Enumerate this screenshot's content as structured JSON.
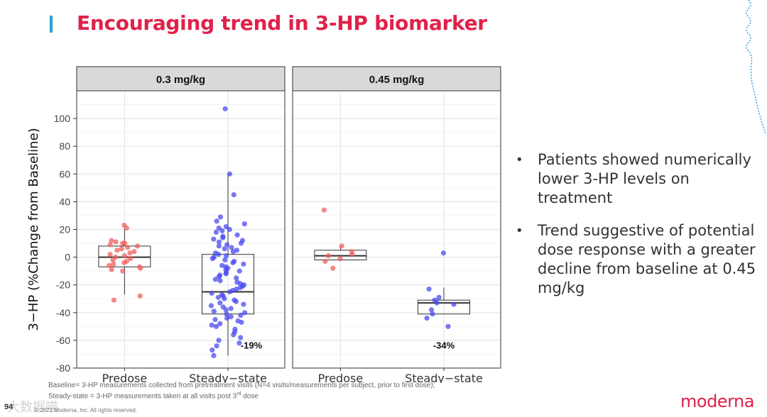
{
  "slide": {
    "title": "Encouraging trend in 3-HP biomarker",
    "page_number": "94",
    "copyright": "© 2022 Moderna, Inc. All rights reserved.",
    "brand": "moderna",
    "watermark": "大数据喵",
    "accent_color": "#e0214a",
    "bar_color": "#2a9fd8"
  },
  "bullets": [
    "Patients showed numerically lower 3-HP levels on treatment",
    "Trend suggestive of potential dose response with a greater decline from baseline at 0.45 mg/kg"
  ],
  "footnotes": {
    "line1": "Baseline= 3-HP measurements collected from pretreatment visits (N=4 visits/measurements per subject, prior to first dose);",
    "line2_prefix": "Steady-state = 3-HP measurements taken at all visits post 3",
    "line2_sup": "rd",
    "line2_suffix": " dose"
  },
  "chart_data": {
    "type": "box+jitter",
    "ylabel": "3−HP (%Change from Baseline)",
    "ylim": [
      -80,
      120
    ],
    "yticks": [
      -80,
      -60,
      -40,
      -20,
      0,
      20,
      40,
      60,
      80,
      100
    ],
    "categories": [
      "Predose",
      "Steady−state"
    ],
    "grid": true,
    "colors": {
      "Predose": "#f06060",
      "Steady−state": "#4a4af0"
    },
    "panels": [
      {
        "label": "0.3 mg/kg",
        "groups": [
          {
            "category": "Predose",
            "box": {
              "min": -27,
              "q1": -7,
              "median": 0,
              "q3": 8,
              "max": 22
            },
            "points": [
              23,
              21,
              12,
              11,
              10,
              10,
              9,
              8,
              7,
              6,
              5,
              4,
              3,
              2,
              1,
              0,
              -1,
              -2,
              -3,
              -4,
              -5,
              -6,
              -7,
              -8,
              -9,
              -10,
              -28,
              -31
            ]
          },
          {
            "category": "Steady−state",
            "box": {
              "min": -71,
              "q1": -41,
              "median": -25,
              "q3": 2,
              "max": 60
            },
            "points": [
              107,
              60,
              45,
              29,
              26,
              24,
              22,
              21,
              20,
              19,
              18,
              16,
              15,
              14,
              13,
              12,
              11,
              10,
              9,
              8,
              7,
              6,
              5,
              4,
              3,
              2,
              1,
              0,
              -1,
              -2,
              -3,
              -4,
              -5,
              -6,
              -7,
              -8,
              -9,
              -10,
              -11,
              -12,
              -13,
              -14,
              -15,
              -16,
              -17,
              -18,
              -19,
              -20,
              -21,
              -22,
              -23,
              -24,
              -25,
              -26,
              -27,
              -28,
              -29,
              -30,
              -31,
              -32,
              -33,
              -34,
              -35,
              -36,
              -37,
              -38,
              -39,
              -40,
              -41,
              -42,
              -43,
              -44,
              -45,
              -46,
              -47,
              -48,
              -49,
              -50,
              -52,
              -54,
              -56,
              -58,
              -60,
              -62,
              -64,
              -67,
              -71
            ],
            "annotation": "-19%"
          }
        ]
      },
      {
        "label": "0.45 mg/kg",
        "groups": [
          {
            "category": "Predose",
            "box": {
              "min": -3,
              "q1": -2,
              "median": 1,
              "q3": 5,
              "max": 8
            },
            "points": [
              34,
              8,
              4,
              2,
              1,
              -1,
              -3,
              -8
            ]
          },
          {
            "category": "Steady−state",
            "box": {
              "min": -41,
              "q1": -41,
              "median": -33,
              "q3": -31,
              "max": -22
            },
            "points": [
              3,
              -23,
              -29,
              -31,
              -33,
              -34,
              -38,
              -41,
              -44,
              -50
            ],
            "annotation": "-34%"
          }
        ]
      }
    ]
  }
}
